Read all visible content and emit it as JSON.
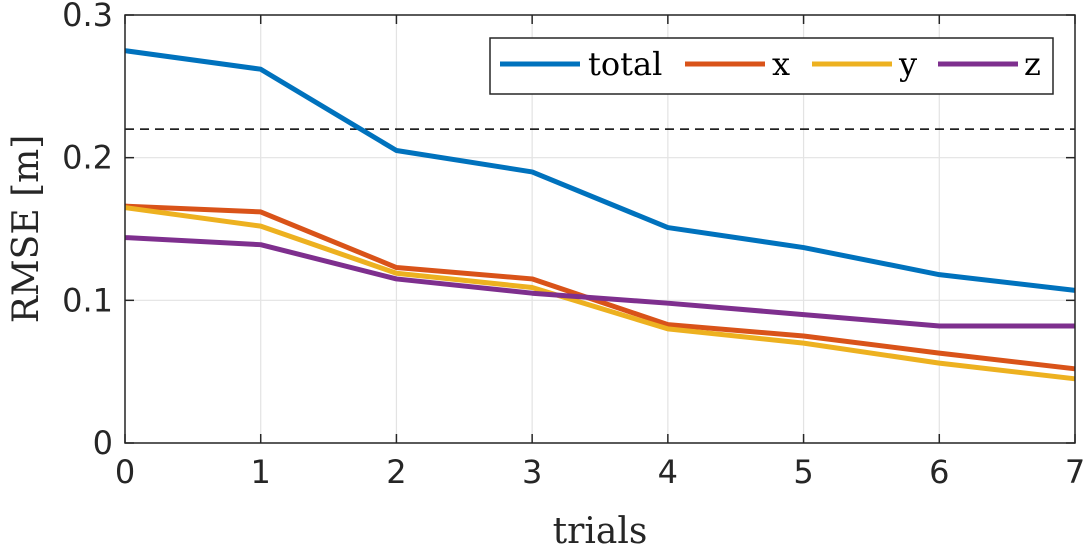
{
  "chart_data": {
    "type": "line",
    "x": [
      0,
      1,
      2,
      3,
      4,
      5,
      6,
      7
    ],
    "series": [
      {
        "name": "total",
        "color": "#0072BD",
        "values": [
          0.275,
          0.262,
          0.205,
          0.19,
          0.151,
          0.137,
          0.118,
          0.107
        ]
      },
      {
        "name": "x",
        "color": "#D95319",
        "values": [
          0.166,
          0.162,
          0.123,
          0.115,
          0.083,
          0.075,
          0.063,
          0.052
        ]
      },
      {
        "name": "y",
        "color": "#EDB120",
        "values": [
          0.165,
          0.152,
          0.119,
          0.109,
          0.08,
          0.07,
          0.056,
          0.045
        ]
      },
      {
        "name": "z",
        "color": "#7E2F8E",
        "values": [
          0.144,
          0.139,
          0.115,
          0.105,
          0.098,
          0.09,
          0.082,
          0.082
        ]
      }
    ],
    "reference_line": {
      "y": 0.22,
      "style": "dashed",
      "color": "#000000"
    },
    "title": "",
    "xlabel": "trials",
    "ylabel": "RMSE [m]",
    "xlim": [
      0,
      7
    ],
    "ylim": [
      0,
      0.3
    ],
    "xticks": [
      0,
      1,
      2,
      3,
      4,
      5,
      6,
      7
    ],
    "xtick_labels": [
      "0",
      "1",
      "2",
      "3",
      "4",
      "5",
      "6",
      "7"
    ],
    "yticks": [
      0,
      0.1,
      0.2,
      0.3
    ],
    "ytick_labels": [
      "0",
      "0.1",
      "0.2",
      "0.3"
    ],
    "grid": true,
    "legend": {
      "position": "top-right",
      "orientation": "horizontal"
    }
  }
}
